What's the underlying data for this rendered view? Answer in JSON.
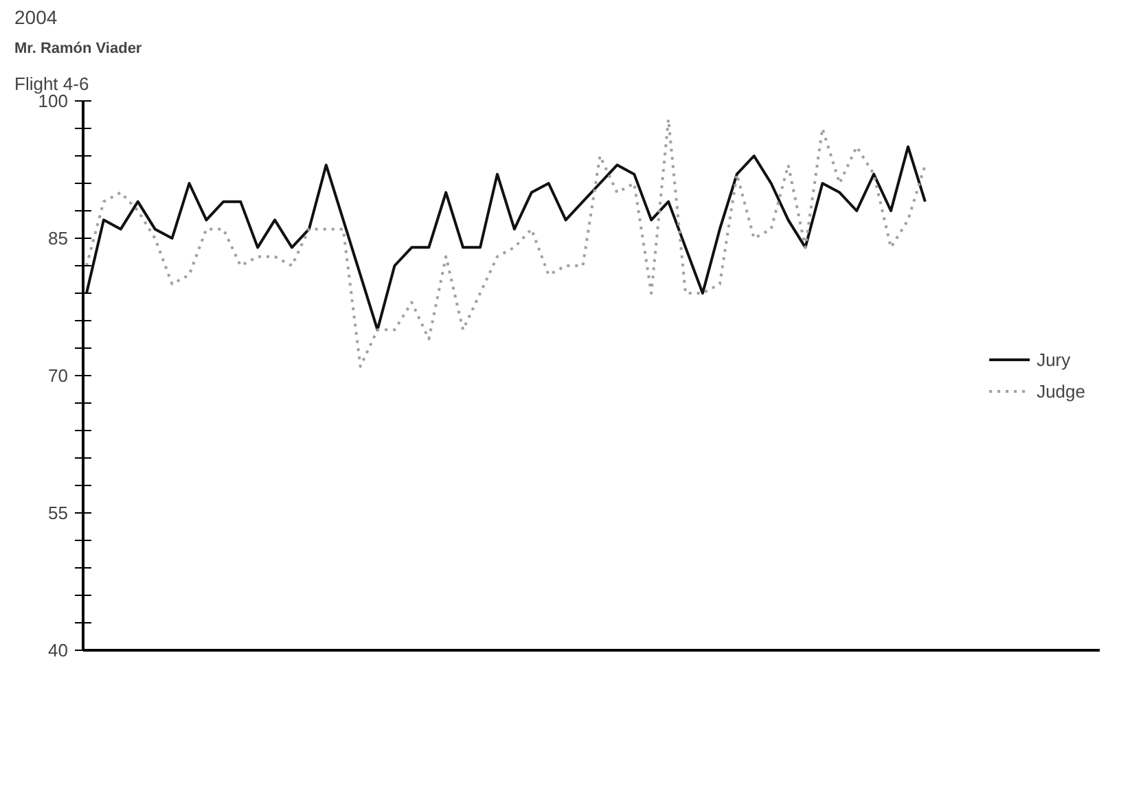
{
  "chart_data": {
    "type": "line",
    "title": "2004",
    "subtitle": "Mr. Ramón Viader",
    "annotations": [
      "Flight 4-6"
    ],
    "categories": [
      null,
      null,
      null,
      null,
      null,
      null,
      null,
      null,
      null,
      null,
      null,
      null,
      null,
      null,
      null,
      null,
      null,
      null,
      null,
      null,
      null,
      null,
      null,
      null,
      null,
      null,
      null,
      null,
      null,
      null,
      null,
      null,
      null,
      null,
      null,
      null,
      null,
      null,
      null,
      null,
      null,
      null,
      null,
      null,
      null,
      null,
      null,
      null,
      null,
      null
    ],
    "series": [
      {
        "name": "Jury",
        "color": "#111111",
        "line_style": "solid",
        "values": [
          79,
          87,
          86,
          89,
          86,
          85,
          91,
          87,
          89,
          89,
          84,
          87,
          84,
          86,
          93,
          87,
          81,
          75,
          82,
          84,
          84,
          90,
          84,
          84,
          92,
          86,
          90,
          91,
          87,
          89,
          91,
          93,
          92,
          87,
          89,
          84,
          79,
          86,
          92,
          94,
          91,
          87,
          84,
          91,
          90,
          88,
          92,
          88,
          95,
          89
        ]
      },
      {
        "name": "Judge",
        "color": "#a0a0a0",
        "line_style": "dotted",
        "values": [
          82,
          89,
          90,
          88,
          85,
          80,
          81,
          86,
          86,
          82,
          83,
          83,
          82,
          86,
          86,
          86,
          71,
          75,
          75,
          78,
          74,
          83,
          75,
          79,
          83,
          84,
          86,
          81,
          82,
          82,
          94,
          90,
          91,
          79,
          98,
          79,
          79,
          80,
          92,
          85,
          86,
          93,
          84,
          97,
          91,
          95,
          92,
          84,
          87,
          93
        ]
      }
    ],
    "ylim": [
      40,
      100
    ],
    "yticks": [
      40,
      {
        "value": 43,
        "label": null
      },
      {
        "value": 46,
        "label": null
      },
      {
        "value": 49,
        "label": null
      },
      {
        "value": 52,
        "label": null
      },
      55,
      {
        "value": 58,
        "label": null
      },
      {
        "value": 61,
        "label": null
      },
      {
        "value": 64,
        "label": null
      },
      {
        "value": 67,
        "label": null
      },
      70,
      {
        "value": 73,
        "label": null
      },
      {
        "value": 76,
        "label": null
      },
      {
        "value": 79,
        "label": null
      },
      {
        "value": 82,
        "label": null
      },
      85,
      {
        "value": 88,
        "label": null
      },
      {
        "value": 91,
        "label": null
      },
      {
        "value": 94,
        "label": null
      },
      {
        "value": 97,
        "label": null
      },
      100
    ],
    "grid": false,
    "legend": "right",
    "tick_labels": "y"
  }
}
